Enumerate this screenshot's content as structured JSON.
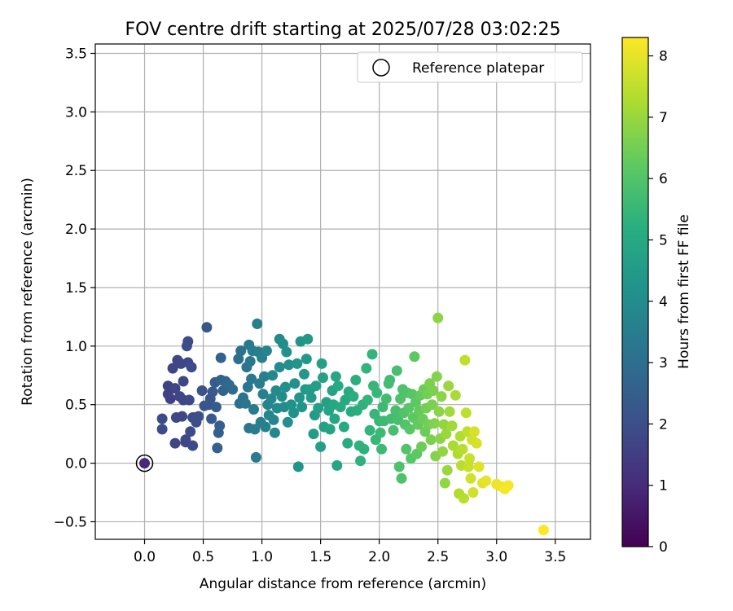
{
  "chart_data": {
    "type": "scatter",
    "title": "FOV centre drift starting at 2025/07/28 03:02:25",
    "xlabel": "Angular distance from reference (arcmin)",
    "ylabel": "Rotation from reference (arcmin)",
    "xlim": [
      -0.42,
      3.8
    ],
    "ylim": [
      -0.65,
      3.58
    ],
    "x_ticks": [
      0.0,
      0.5,
      1.0,
      1.5,
      2.0,
      2.5,
      3.0,
      3.5
    ],
    "y_ticks": [
      -0.5,
      0.0,
      0.5,
      1.0,
      1.5,
      2.0,
      2.5,
      3.0,
      3.5
    ],
    "x_tick_labels": [
      "0.0",
      "0.5",
      "1.0",
      "1.5",
      "2.0",
      "2.5",
      "3.0",
      "3.5"
    ],
    "y_tick_labels": [
      "−0.5",
      "0.0",
      "0.5",
      "1.0",
      "1.5",
      "2.0",
      "2.5",
      "3.0",
      "3.5"
    ],
    "grid": true,
    "legend": {
      "position": "top-right",
      "entries": [
        "Reference platepar"
      ]
    },
    "reference_point": {
      "name": "Reference platepar",
      "x": 0.0,
      "y": 0.0
    },
    "colorbar": {
      "label": "Hours from first FF file",
      "range": [
        0,
        8.3
      ],
      "ticks": [
        0,
        1,
        2,
        3,
        4,
        5,
        6,
        7,
        8
      ],
      "tick_labels": [
        "0",
        "1",
        "2",
        "3",
        "4",
        "5",
        "6",
        "7",
        "8"
      ],
      "colormap": "viridis"
    },
    "points": [
      [
        0.0,
        0.0,
        1.0
      ],
      [
        0.15,
        0.38,
        1.9
      ],
      [
        0.15,
        0.29,
        1.9
      ],
      [
        0.2,
        0.59,
        1.6
      ],
      [
        0.2,
        0.66,
        1.6
      ],
      [
        0.22,
        0.55,
        1.6
      ],
      [
        0.24,
        0.81,
        1.7
      ],
      [
        0.26,
        0.64,
        1.7
      ],
      [
        0.27,
        0.39,
        1.8
      ],
      [
        0.26,
        0.17,
        1.7
      ],
      [
        0.28,
        0.88,
        1.8
      ],
      [
        0.3,
        0.57,
        1.7
      ],
      [
        0.31,
        0.85,
        1.8
      ],
      [
        0.32,
        0.4,
        1.8
      ],
      [
        0.33,
        0.7,
        1.7
      ],
      [
        0.33,
        0.54,
        1.8
      ],
      [
        0.35,
        0.18,
        1.8
      ],
      [
        0.35,
        0.2,
        1.8
      ],
      [
        0.36,
        1.0,
        1.9
      ],
      [
        0.37,
        1.04,
        1.9
      ],
      [
        0.37,
        0.86,
        1.8
      ],
      [
        0.38,
        0.54,
        1.8
      ],
      [
        0.39,
        0.27,
        1.9
      ],
      [
        0.4,
        0.82,
        1.9
      ],
      [
        0.41,
        0.39,
        1.9
      ],
      [
        0.41,
        0.15,
        1.9
      ],
      [
        0.43,
        0.39,
        1.9
      ],
      [
        0.44,
        0.35,
        2.0
      ],
      [
        0.46,
        0.4,
        2.0
      ],
      [
        0.49,
        0.62,
        2.1
      ],
      [
        0.51,
        0.49,
        2.1
      ],
      [
        0.53,
        1.16,
        2.2
      ],
      [
        0.55,
        0.5,
        2.2
      ],
      [
        0.56,
        0.55,
        2.2
      ],
      [
        0.57,
        0.38,
        2.3
      ],
      [
        0.58,
        0.61,
        2.3
      ],
      [
        0.6,
        0.69,
        2.4
      ],
      [
        0.61,
        0.48,
        2.4
      ],
      [
        0.62,
        0.13,
        2.5
      ],
      [
        0.63,
        0.26,
        2.5
      ],
      [
        0.64,
        0.32,
        2.5
      ],
      [
        0.65,
        0.9,
        2.6
      ],
      [
        0.65,
        0.71,
        2.6
      ],
      [
        0.67,
        0.62,
        2.6
      ],
      [
        0.69,
        0.7,
        2.7
      ],
      [
        0.72,
        0.67,
        2.8
      ],
      [
        0.75,
        0.63,
        2.9
      ],
      [
        0.8,
        0.89,
        3.0
      ],
      [
        0.81,
        0.51,
        3.0
      ],
      [
        0.82,
        0.96,
        3.1
      ],
      [
        0.84,
        0.56,
        3.1
      ],
      [
        0.86,
        0.51,
        3.2
      ],
      [
        0.87,
        0.82,
        3.2
      ],
      [
        0.88,
        0.65,
        3.2
      ],
      [
        0.89,
        1.01,
        3.3
      ],
      [
        0.89,
        0.3,
        3.3
      ],
      [
        0.9,
        0.87,
        3.3
      ],
      [
        0.91,
        0.72,
        3.3
      ],
      [
        0.92,
        0.96,
        3.4
      ],
      [
        0.93,
        0.46,
        3.4
      ],
      [
        0.94,
        0.29,
        3.4
      ],
      [
        0.95,
        0.05,
        3.4
      ],
      [
        0.96,
        1.19,
        3.5
      ],
      [
        0.97,
        0.95,
        3.5
      ],
      [
        0.98,
        0.68,
        3.5
      ],
      [
        0.99,
        0.35,
        3.5
      ],
      [
        1.0,
        0.9,
        3.6
      ],
      [
        1.01,
        0.59,
        3.6
      ],
      [
        1.02,
        0.74,
        3.6
      ],
      [
        1.03,
        0.31,
        3.6
      ],
      [
        1.04,
        0.96,
        3.7
      ],
      [
        1.05,
        0.5,
        3.7
      ],
      [
        1.06,
        0.41,
        3.7
      ],
      [
        1.08,
        0.55,
        3.8
      ],
      [
        1.09,
        0.75,
        3.8
      ],
      [
        1.1,
        0.37,
        3.8
      ],
      [
        1.11,
        0.26,
        3.8
      ],
      [
        1.12,
        0.62,
        3.9
      ],
      [
        1.13,
        0.47,
        3.9
      ],
      [
        1.15,
        1.06,
        3.9
      ],
      [
        1.15,
        0.82,
        3.9
      ],
      [
        1.17,
        0.57,
        4.0
      ],
      [
        1.18,
        1.02,
        4.0
      ],
      [
        1.19,
        0.48,
        4.0
      ],
      [
        1.2,
        0.65,
        4.1
      ],
      [
        1.21,
        0.95,
        4.1
      ],
      [
        1.22,
        0.35,
        4.1
      ],
      [
        1.23,
        0.84,
        4.1
      ],
      [
        1.25,
        0.5,
        4.2
      ],
      [
        1.27,
        0.43,
        4.2
      ],
      [
        1.28,
        0.68,
        4.2
      ],
      [
        1.3,
        0.85,
        4.3
      ],
      [
        1.31,
        -0.03,
        4.3
      ],
      [
        1.32,
        0.56,
        4.3
      ],
      [
        1.33,
        1.04,
        4.3
      ],
      [
        1.34,
        0.48,
        4.3
      ],
      [
        1.36,
        0.76,
        4.4
      ],
      [
        1.37,
        0.63,
        4.4
      ],
      [
        1.38,
        0.89,
        4.4
      ],
      [
        1.39,
        1.06,
        4.4
      ],
      [
        1.41,
        0.63,
        4.5
      ],
      [
        1.42,
        0.56,
        4.5
      ],
      [
        1.44,
        0.25,
        4.5
      ],
      [
        1.45,
        0.41,
        4.5
      ],
      [
        1.46,
        0.66,
        4.6
      ],
      [
        1.48,
        0.47,
        4.6
      ],
      [
        1.5,
        0.14,
        4.6
      ],
      [
        1.51,
        0.85,
        4.7
      ],
      [
        1.52,
        0.73,
        4.7
      ],
      [
        1.53,
        0.31,
        4.7
      ],
      [
        1.55,
        0.52,
        4.7
      ],
      [
        1.57,
        0.45,
        4.8
      ],
      [
        1.58,
        0.29,
        4.8
      ],
      [
        1.6,
        0.62,
        4.8
      ],
      [
        1.61,
        0.5,
        4.9
      ],
      [
        1.62,
        0.38,
        4.9
      ],
      [
        1.63,
        0.74,
        4.9
      ],
      [
        1.64,
        -0.02,
        4.9
      ],
      [
        1.65,
        0.66,
        5.0
      ],
      [
        1.67,
        0.48,
        5.0
      ],
      [
        1.7,
        0.31,
        5.0
      ],
      [
        1.71,
        0.54,
        5.0
      ],
      [
        1.73,
        0.17,
        5.1
      ],
      [
        1.74,
        0.61,
        5.1
      ],
      [
        1.76,
        0.44,
        5.1
      ],
      [
        1.78,
        0.57,
        5.2
      ],
      [
        1.8,
        0.71,
        5.2
      ],
      [
        1.81,
        0.45,
        5.2
      ],
      [
        1.83,
        0.15,
        5.3
      ],
      [
        1.84,
        0.02,
        5.3
      ],
      [
        1.86,
        0.5,
        5.3
      ],
      [
        1.87,
        0.12,
        5.3
      ],
      [
        1.89,
        0.81,
        5.4
      ],
      [
        1.9,
        0.54,
        5.4
      ],
      [
        1.92,
        0.28,
        5.4
      ],
      [
        1.94,
        0.93,
        5.4
      ],
      [
        1.95,
        0.66,
        5.5
      ],
      [
        1.96,
        0.42,
        5.5
      ],
      [
        1.97,
        0.2,
        5.5
      ],
      [
        1.98,
        0.6,
        5.5
      ],
      [
        2.0,
        0.36,
        5.5
      ],
      [
        2.01,
        0.26,
        5.6
      ],
      [
        2.02,
        0.12,
        5.6
      ],
      [
        2.03,
        0.48,
        5.6
      ],
      [
        2.04,
        0.36,
        5.6
      ],
      [
        2.06,
        0.55,
        5.7
      ],
      [
        2.08,
        0.68,
        5.7
      ],
      [
        2.09,
        0.71,
        5.7
      ],
      [
        2.1,
        0.38,
        5.7
      ],
      [
        2.12,
        0.28,
        5.8
      ],
      [
        2.14,
        0.45,
        5.8
      ],
      [
        2.15,
        0.79,
        5.8
      ],
      [
        2.16,
        0.37,
        5.8
      ],
      [
        2.17,
        -0.03,
        5.9
      ],
      [
        2.18,
        0.55,
        5.9
      ],
      [
        2.19,
        -0.13,
        5.9
      ],
      [
        2.2,
        0.63,
        5.9
      ],
      [
        2.21,
        0.43,
        6.0
      ],
      [
        2.22,
        0.33,
        6.0
      ],
      [
        2.23,
        0.12,
        6.0
      ],
      [
        2.24,
        0.6,
        6.0
      ],
      [
        2.25,
        0.47,
        6.1
      ],
      [
        2.26,
        0.29,
        6.1
      ],
      [
        2.27,
        0.04,
        6.1
      ],
      [
        2.28,
        0.59,
        6.1
      ],
      [
        2.29,
        0.39,
        6.2
      ],
      [
        2.3,
        0.91,
        6.2
      ],
      [
        2.31,
        0.52,
        6.2
      ],
      [
        2.32,
        0.08,
        6.2
      ],
      [
        2.33,
        0.33,
        6.3
      ],
      [
        2.34,
        0.45,
        6.3
      ],
      [
        2.35,
        0.58,
        6.3
      ],
      [
        2.36,
        0.14,
        6.4
      ],
      [
        2.37,
        0.38,
        6.4
      ],
      [
        2.38,
        0.63,
        6.4
      ],
      [
        2.39,
        0.27,
        6.4
      ],
      [
        2.4,
        0.47,
        6.5
      ],
      [
        2.41,
        0.59,
        6.5
      ],
      [
        2.42,
        0.33,
        6.5
      ],
      [
        2.43,
        0.68,
        6.6
      ],
      [
        2.44,
        0.2,
        6.6
      ],
      [
        2.45,
        0.5,
        6.6
      ],
      [
        2.46,
        0.62,
        6.6
      ],
      [
        2.47,
        0.34,
        6.7
      ],
      [
        2.48,
        0.06,
        6.7
      ],
      [
        2.49,
        0.74,
        6.7
      ],
      [
        2.5,
        1.24,
        6.8
      ],
      [
        2.51,
        0.44,
        6.8
      ],
      [
        2.52,
        0.21,
        6.8
      ],
      [
        2.53,
        0.57,
        6.8
      ],
      [
        2.54,
        0.1,
        6.9
      ],
      [
        2.55,
        0.33,
        6.9
      ],
      [
        2.56,
        -0.17,
        6.9
      ],
      [
        2.57,
        0.25,
        7.0
      ],
      [
        2.58,
        -0.06,
        7.0
      ],
      [
        2.59,
        0.66,
        7.0
      ],
      [
        2.6,
        0.44,
        7.1
      ],
      [
        2.62,
        0.32,
        7.1
      ],
      [
        2.63,
        0.15,
        7.2
      ],
      [
        2.65,
        0.58,
        7.2
      ],
      [
        2.67,
        0.08,
        7.3
      ],
      [
        2.68,
        -0.26,
        7.3
      ],
      [
        2.69,
        0.23,
        7.3
      ],
      [
        2.7,
        -0.02,
        7.4
      ],
      [
        2.71,
        0.12,
        7.4
      ],
      [
        2.72,
        -0.3,
        7.4
      ],
      [
        2.73,
        0.88,
        7.5
      ],
      [
        2.74,
        0.43,
        7.5
      ],
      [
        2.75,
        0.27,
        7.5
      ],
      [
        2.76,
        -0.03,
        7.6
      ],
      [
        2.77,
        0.04,
        7.6
      ],
      [
        2.78,
        -0.13,
        7.7
      ],
      [
        2.79,
        0.2,
        7.7
      ],
      [
        2.8,
        -0.25,
        7.7
      ],
      [
        2.81,
        0.27,
        7.8
      ],
      [
        2.83,
        0.17,
        7.8
      ],
      [
        2.85,
        -0.03,
        7.9
      ],
      [
        2.88,
        -0.17,
        7.9
      ],
      [
        2.91,
        -0.15,
        8.0
      ],
      [
        3.0,
        -0.18,
        8.1
      ],
      [
        3.04,
        -0.2,
        8.1
      ],
      [
        3.07,
        -0.22,
        8.2
      ],
      [
        3.1,
        -0.19,
        8.2
      ],
      [
        3.4,
        -0.57,
        8.3
      ]
    ]
  }
}
